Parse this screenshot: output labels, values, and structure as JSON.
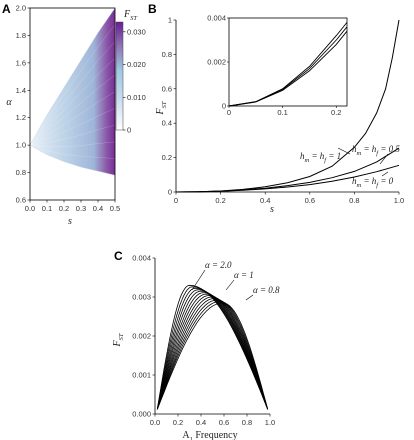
{
  "chart_data": [
    {
      "panel": "A",
      "type": "heatmap",
      "xlabel": "s",
      "ylabel": "α",
      "xlim": [
        0.0,
        0.5
      ],
      "ylim": [
        0.6,
        2.0
      ],
      "x_ticks": [
        "0.0",
        "0.1",
        "0.2",
        "0.3",
        "0.4",
        "0.5"
      ],
      "y_ticks": [
        "0.6",
        "0.8",
        "1.0",
        "1.2",
        "1.4",
        "1.6",
        "1.8",
        "2.0"
      ],
      "colorbar": {
        "label": "F_ST",
        "ticks": [
          "0",
          "0.010",
          "0.020",
          "0.030"
        ],
        "range": [
          0,
          0.033
        ],
        "colors": [
          "#ffffff",
          "#c6dbef",
          "#9ecae1",
          "#8c6bb1",
          "#6a1b9a"
        ]
      },
      "region_upper_alpha": [
        [
          0.0,
          1.0
        ],
        [
          0.1,
          1.22
        ],
        [
          0.2,
          1.42
        ],
        [
          0.3,
          1.62
        ],
        [
          0.4,
          1.82
        ],
        [
          0.5,
          2.0
        ]
      ],
      "region_lower_alpha": [
        [
          0.0,
          1.0
        ],
        [
          0.1,
          0.93
        ],
        [
          0.2,
          0.88
        ],
        [
          0.3,
          0.84
        ],
        [
          0.4,
          0.81
        ],
        [
          0.5,
          0.78
        ]
      ],
      "peak": {
        "s": 0.5,
        "alpha": 1.15,
        "fst": 0.033
      }
    },
    {
      "panel": "B",
      "type": "line",
      "xlabel": "s",
      "ylabel": "F_ST",
      "xlim": [
        0,
        1.0
      ],
      "ylim": [
        0,
        1.0
      ],
      "x_ticks": [
        "0",
        "0.2",
        "0.4",
        "0.6",
        "0.8",
        "1.0"
      ],
      "y_ticks": [
        "0",
        "0.2",
        "0.4",
        "0.6",
        "0.8",
        "1"
      ],
      "series": [
        {
          "name": "h_m = h_f = 1",
          "x": [
            0,
            0.1,
            0.2,
            0.3,
            0.4,
            0.5,
            0.6,
            0.7,
            0.8,
            0.85,
            0.9,
            0.94,
            0.97,
            1.0
          ],
          "y": [
            0,
            0.0015,
            0.006,
            0.015,
            0.03,
            0.054,
            0.09,
            0.15,
            0.26,
            0.34,
            0.46,
            0.6,
            0.78,
            1.0
          ]
        },
        {
          "name": "h_m = h_f = 0.5",
          "x": [
            0,
            0.1,
            0.2,
            0.3,
            0.4,
            0.5,
            0.6,
            0.7,
            0.8,
            0.9,
            1.0
          ],
          "y": [
            0,
            0.0013,
            0.005,
            0.012,
            0.022,
            0.037,
            0.056,
            0.083,
            0.12,
            0.175,
            0.255
          ]
        },
        {
          "name": "h_m = h_f = 0",
          "x": [
            0,
            0.1,
            0.2,
            0.3,
            0.4,
            0.5,
            0.6,
            0.7,
            0.8,
            0.9,
            1.0
          ],
          "y": [
            0,
            0.0011,
            0.0045,
            0.01,
            0.018,
            0.029,
            0.043,
            0.062,
            0.087,
            0.118,
            0.155
          ]
        }
      ],
      "inset": {
        "xlim": [
          0,
          0.22
        ],
        "ylim": [
          0,
          0.004
        ],
        "x_ticks": [
          "0",
          "0.1",
          "0.2"
        ],
        "y_ticks": [
          "0",
          "0.002",
          "0.004"
        ],
        "series": [
          {
            "x": [
              0,
              0.05,
              0.1,
              0.15,
              0.2,
              0.22
            ],
            "y": [
              0,
              0.0002,
              0.00078,
              0.0018,
              0.0032,
              0.0038
            ]
          },
          {
            "x": [
              0,
              0.05,
              0.1,
              0.15,
              0.2,
              0.22
            ],
            "y": [
              0,
              0.00019,
              0.00075,
              0.0017,
              0.003,
              0.0036
            ]
          },
          {
            "x": [
              0,
              0.05,
              0.1,
              0.15,
              0.2,
              0.22
            ],
            "y": [
              0,
              0.00018,
              0.00071,
              0.0016,
              0.0028,
              0.0034
            ]
          }
        ]
      },
      "annotations": [
        "h_m = h_f = 1",
        "h_m = h_f = 0.5",
        "h_m = h_f = 0"
      ]
    },
    {
      "panel": "C",
      "type": "line",
      "xlabel": "A₁ Frequency",
      "ylabel": "F_ST",
      "xlim": [
        0,
        1.0
      ],
      "ylim": [
        0,
        0.004
      ],
      "x_ticks": [
        "0.0",
        "0.2",
        "0.4",
        "0.6",
        "0.8",
        "1.0"
      ],
      "y_ticks": [
        "0.000",
        "0.001",
        "0.002",
        "0.003",
        "0.004"
      ],
      "alphas": [
        2.0,
        1.9,
        1.8,
        1.7,
        1.6,
        1.5,
        1.4,
        1.3,
        1.2,
        1.1,
        1.0,
        0.9,
        0.8
      ],
      "family": {
        "peak_x_start": 0.3,
        "peak_x_end": 0.59,
        "peak_y_start": 0.0033,
        "peak_y_end": 0.00285,
        "y_at_ends": 0.00012
      },
      "annotations": [
        "α = 2.0",
        "α = 1",
        "α = 0.8"
      ]
    }
  ],
  "labels": {
    "panel_a": "A",
    "panel_b": "B",
    "panel_c": "C",
    "a_colorbar_label": "F",
    "a_colorbar_sub": "ST",
    "b_ylabel_main": "F",
    "b_ylabel_sub": "ST",
    "c_ylabel_main": "F",
    "c_ylabel_sub": "ST",
    "a_xlabel": "s",
    "a_ylabel": "α",
    "b_xlabel": "s",
    "c_xlabel_prefix": "A",
    "c_xlabel_sub": "1",
    "c_xlabel_suffix": " Frequency",
    "ann_b1_h": "h",
    "ann_b1_m": "m",
    "ann_b1_mid": " = h",
    "ann_b1_f": "f",
    "ann_b1_val": " = 1",
    "ann_b2_val": " = 0.5",
    "ann_b3_val": " = 0",
    "ann_c1": "α = 2.0",
    "ann_c2": "α = 1",
    "ann_c3": "α = 0.8"
  }
}
